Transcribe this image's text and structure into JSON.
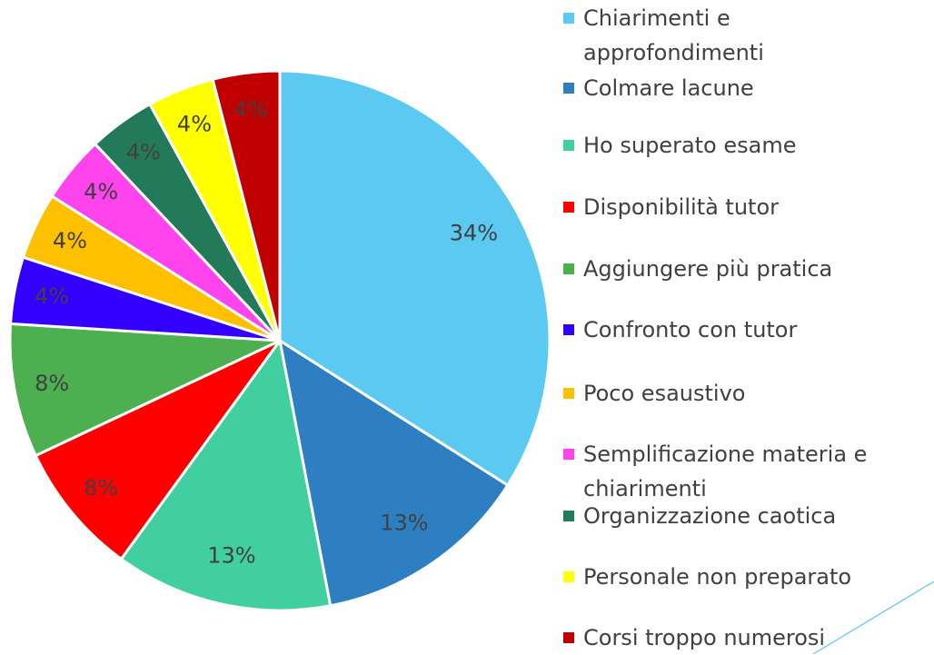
{
  "chart_data": {
    "type": "pie",
    "categories": [
      "Chiarimenti e approfondimenti",
      "Colmare lacune",
      "Ho superato esame",
      "Disponibilità tutor",
      "Aggiungere più pratica",
      "Confronto con tutor",
      "Poco esaustivo",
      "Semplificazione materia e chiarimenti",
      "Organizzazione caotica",
      "Personale non preparato",
      "Corsi troppo numerosi"
    ],
    "values": [
      34,
      13,
      13,
      8,
      8,
      4,
      4,
      4,
      4,
      4,
      4
    ],
    "value_labels": [
      "34%",
      "13%",
      "13%",
      "8%",
      "8%",
      "4%",
      "4%",
      "4%",
      "4%",
      "4%",
      "4%"
    ],
    "colors": [
      "#5bc9f0",
      "#2e7fc2",
      "#42cfa0",
      "#ff0000",
      "#4caf50",
      "#3300ff",
      "#ffc000",
      "#ff44ee",
      "#237a5a",
      "#ffff00",
      "#c00000"
    ]
  }
}
